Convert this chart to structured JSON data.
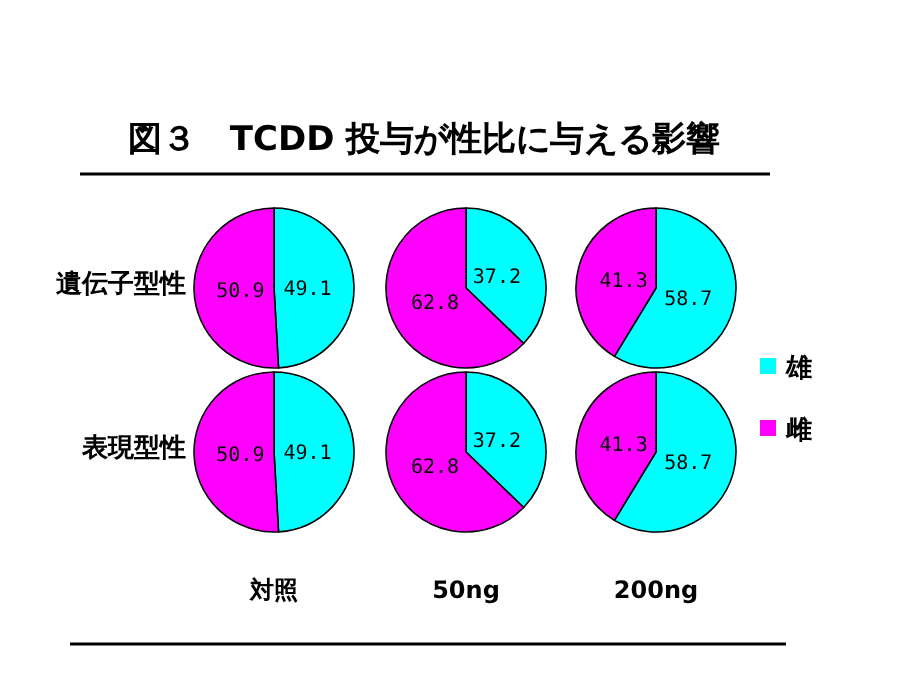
{
  "chart_data": [
    {
      "type": "pie",
      "title": "図３　TCDD 投与が性比に与える影響",
      "ylabel": "遺伝子型性",
      "categories": [
        null,
        null
      ],
      "values": [
        49.1,
        50.9
      ],
      "colors": [
        "#00ffff",
        "#ff00ff"
      ],
      "data_labels": true
    },
    {
      "type": "pie",
      "categories": [
        null,
        null
      ],
      "values": [
        37.2,
        62.8
      ],
      "colors": [
        "#00ffff",
        "#ff00ff"
      ],
      "data_labels": true
    },
    {
      "type": "pie",
      "categories": [
        "雄",
        "雌"
      ],
      "values": [
        58.7,
        41.3
      ],
      "colors": [
        "#00ffff",
        "#ff00ff"
      ],
      "data_labels": true,
      "legend": "right"
    },
    {
      "type": "pie",
      "ylabel": "表現型性",
      "xlabel": "対照",
      "categories": [
        null,
        null
      ],
      "values": [
        49.1,
        50.9
      ],
      "colors": [
        "#00ffff",
        "#ff00ff"
      ],
      "data_labels": true
    },
    {
      "type": "pie",
      "xlabel": "50ng",
      "categories": [
        null,
        null
      ],
      "values": [
        37.2,
        62.8
      ],
      "colors": [
        "#00ffff",
        "#ff00ff"
      ],
      "data_labels": true
    },
    {
      "type": "pie",
      "xlabel": "200ng",
      "categories": [
        null,
        null
      ],
      "values": [
        58.7,
        41.3
      ],
      "colors": [
        "#00ffff",
        "#ff00ff"
      ],
      "data_labels": true
    }
  ]
}
